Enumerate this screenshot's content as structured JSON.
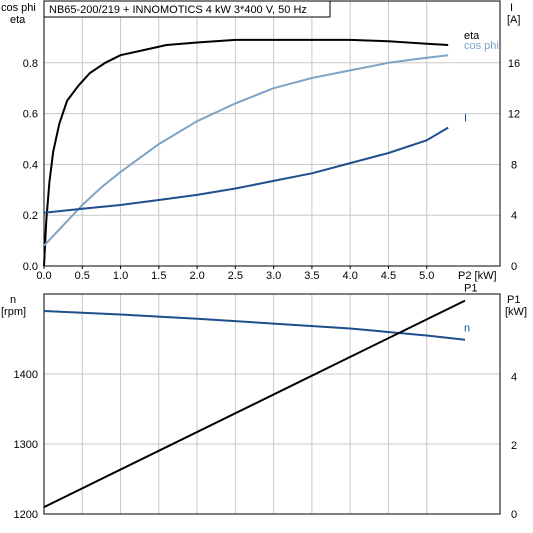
{
  "chart_data": [
    {
      "type": "line",
      "title": "NB65-200/219 + INNOMOTICS   4 kW   3*400 V, 50 Hz",
      "x_axis": {
        "label": "P2 [kW]",
        "range": [
          0,
          5.3
        ],
        "ticks": [
          "0.0",
          "0.5",
          "1.0",
          "1.5",
          "2.0",
          "2.5",
          "3.0",
          "3.5",
          "4.0",
          "4.5",
          "5.0"
        ]
      },
      "left_axis": {
        "label_line1": "cos phi",
        "label_line2": "eta",
        "range": [
          0,
          1.0
        ],
        "ticks": [
          "0.0",
          "0.2",
          "0.4",
          "0.6",
          "0.8"
        ]
      },
      "right_axis": {
        "label_line1": "I",
        "label_line2": "[A]",
        "range": [
          0,
          20
        ],
        "ticks": [
          "0",
          "4",
          "8",
          "12",
          "16"
        ]
      },
      "grid": true,
      "series": [
        {
          "name": "eta",
          "axis": "left",
          "color": "#000000",
          "x": [
            0,
            0.03,
            0.07,
            0.12,
            0.2,
            0.3,
            0.45,
            0.6,
            0.8,
            1.0,
            1.3,
            1.6,
            2.0,
            2.5,
            3.0,
            3.5,
            4.0,
            4.5,
            5.0,
            5.5
          ],
          "y": [
            0,
            0.18,
            0.33,
            0.45,
            0.56,
            0.65,
            0.71,
            0.76,
            0.8,
            0.83,
            0.85,
            0.87,
            0.88,
            0.89,
            0.89,
            0.89,
            0.89,
            0.885,
            0.875,
            0.87
          ]
        },
        {
          "name": "cos phi",
          "axis": "left",
          "color": "#7fa3c4",
          "x": [
            0,
            0.25,
            0.5,
            0.75,
            1.0,
            1.5,
            2.0,
            2.5,
            3.0,
            3.5,
            4.0,
            4.5,
            5.0,
            5.5
          ],
          "y": [
            0.08,
            0.16,
            0.24,
            0.31,
            0.37,
            0.48,
            0.57,
            0.64,
            0.7,
            0.74,
            0.77,
            0.8,
            0.82,
            0.83
          ]
        },
        {
          "name": "I",
          "axis": "right",
          "color": "#1f4e8c",
          "x": [
            0,
            0.5,
            1.0,
            1.5,
            2.0,
            2.5,
            3.0,
            3.5,
            4.0,
            4.5,
            5.0,
            5.5
          ],
          "y": [
            4.2,
            4.5,
            4.8,
            5.2,
            5.6,
            6.1,
            6.7,
            7.3,
            8.1,
            8.9,
            9.9,
            10.9
          ]
        }
      ]
    },
    {
      "type": "line",
      "x_axis": {
        "range": [
          0,
          5.3
        ]
      },
      "left_axis": {
        "label_line1": "n",
        "label_line2": "[rpm]",
        "range": [
          1200,
          1500
        ],
        "ticks": [
          "1200",
          "1300",
          "1400"
        ]
      },
      "right_axis": {
        "label_line1": "P1",
        "label_line2": "[kW]",
        "range": [
          0,
          6.1
        ],
        "ticks": [
          "0",
          "2",
          "4"
        ]
      },
      "grid": true,
      "series": [
        {
          "name": "n",
          "axis": "left",
          "color": "#1f4e8c",
          "x": [
            0,
            1.0,
            2.0,
            3.0,
            4.0,
            5.0,
            5.5
          ],
          "y": [
            1490,
            1485,
            1479,
            1472,
            1465,
            1455,
            1449
          ]
        },
        {
          "name": "P1",
          "axis": "right",
          "color": "#000000",
          "x": [
            0,
            5.5
          ],
          "y": [
            0.2,
            6.2
          ]
        }
      ]
    }
  ]
}
